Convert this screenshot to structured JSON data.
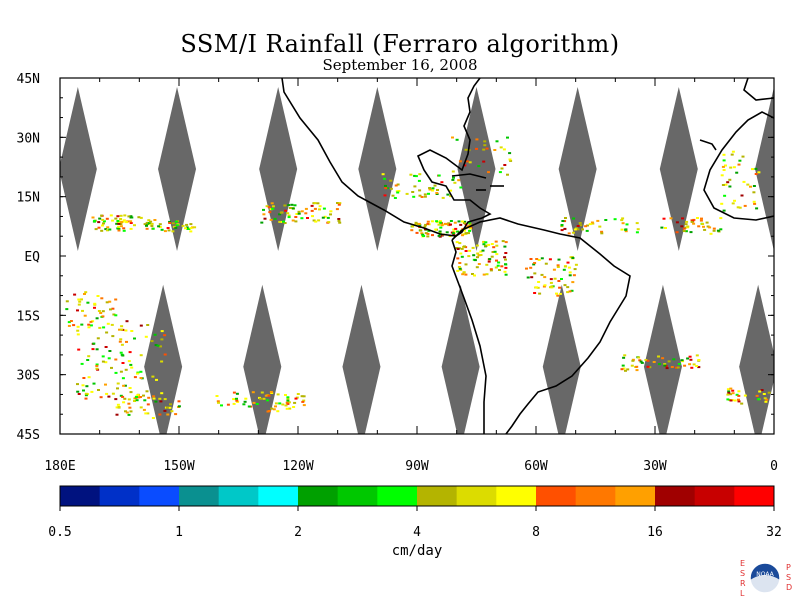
{
  "header": {
    "title": "SSM/I Rainfall (Ferraro algorithm)",
    "subtitle": "September 16, 2008"
  },
  "map": {
    "lat_labels": [
      "45N",
      "30N",
      "15N",
      "EQ",
      "15S",
      "30S",
      "45S"
    ],
    "lat_values": [
      45,
      30,
      15,
      0,
      -15,
      -30,
      -45
    ],
    "lon_labels": [
      "180E",
      "150W",
      "120W",
      "90W",
      "60W",
      "30W",
      "0"
    ],
    "lon_values": [
      -180,
      -150,
      -120,
      -90,
      -60,
      -30,
      0
    ],
    "lon_range": [
      -180,
      0
    ],
    "lat_range": [
      -45,
      45
    ],
    "no_data_color": "#686868",
    "swath_gaps": [
      {
        "lon": -175.5,
        "lat": 22
      },
      {
        "lon": -150.5,
        "lat": 22
      },
      {
        "lon": -125,
        "lat": 22
      },
      {
        "lon": -100,
        "lat": 22
      },
      {
        "lon": -75,
        "lat": 22
      },
      {
        "lon": -49.5,
        "lat": 22
      },
      {
        "lon": -24,
        "lat": 22
      },
      {
        "lon": 0,
        "lat": 22
      },
      {
        "lon": -154,
        "lat": -28
      },
      {
        "lon": -129,
        "lat": -28
      },
      {
        "lon": -104,
        "lat": -28
      },
      {
        "lon": -79,
        "lat": -28
      },
      {
        "lon": -53.5,
        "lat": -28
      },
      {
        "lon": -28,
        "lat": -28
      },
      {
        "lon": -4,
        "lat": -28
      }
    ]
  },
  "colorbar": {
    "unit_label": "cm/day",
    "tick_labels": [
      "0.5",
      "1",
      "2",
      "4",
      "8",
      "16",
      "32"
    ],
    "colors": [
      "#00127f",
      "#0030c8",
      "#0a4cff",
      "#0a9090",
      "#00c8c8",
      "#00ffff",
      "#00a000",
      "#00c800",
      "#00ff00",
      "#b4b400",
      "#dcdc00",
      "#ffff00",
      "#ff5000",
      "#ff7800",
      "#ffa000",
      "#a00000",
      "#c80000",
      "#ff0000"
    ]
  },
  "logo": {
    "left_letters": [
      "E",
      "S",
      "R",
      "L"
    ],
    "right_letters": [
      "P",
      "S",
      "D"
    ],
    "badge_text": "NOAA",
    "accent_color": "#e03030",
    "badge_color": "#1a4a9a"
  }
}
